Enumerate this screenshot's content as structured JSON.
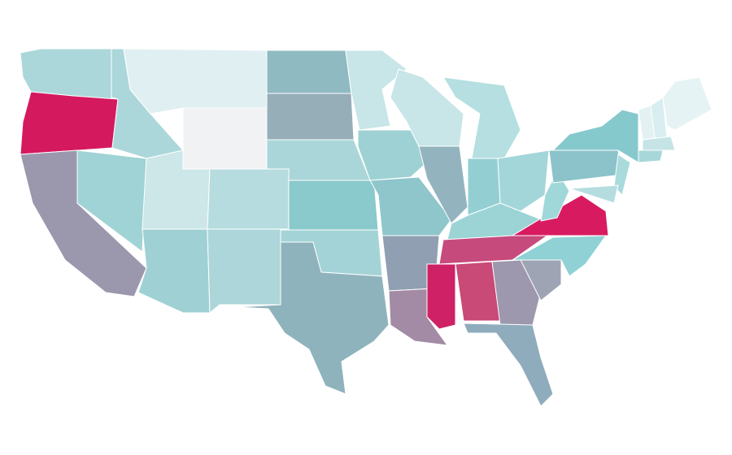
{
  "map": {
    "regions": [
      {
        "color": "#abd7da"
      },
      {
        "color": "#d5195f"
      },
      {
        "color": "#9b98ae"
      },
      {
        "color": "#a0d3d6"
      },
      {
        "color": "#acd7da"
      },
      {
        "color": "#e0eff2"
      },
      {
        "color": "#f1f2f4"
      },
      {
        "color": "#cde6e8"
      },
      {
        "color": "#9fd1d4"
      },
      {
        "color": "#b6dcdf"
      },
      {
        "color": "#acd6d9"
      },
      {
        "color": "#8fbac2"
      },
      {
        "color": "#96aeb8"
      },
      {
        "color": "#abd6d9"
      },
      {
        "color": "#8ac9cc"
      },
      {
        "color": "#a3d3d6"
      },
      {
        "color": "#8fb3bd"
      },
      {
        "color": "#c8e5e7"
      },
      {
        "color": "#9ed1d4"
      },
      {
        "color": "#8fc6cc"
      },
      {
        "color": "#909fb1"
      },
      {
        "color": "#a38ba5"
      },
      {
        "color": "#c8e5e7"
      },
      {
        "color": "#93b4be"
      },
      {
        "color": "#b5dfe1"
      },
      {
        "color": "#93cfd2"
      },
      {
        "color": "#a3d6d8"
      },
      {
        "color": "#9cd4d6"
      },
      {
        "color": "#c74a7d"
      },
      {
        "color": "#cf2166"
      },
      {
        "color": "#c94977"
      },
      {
        "color": "#9d98ad"
      },
      {
        "color": "#8facbd"
      },
      {
        "color": "#9fa4b5"
      },
      {
        "color": "#8fd1d4"
      },
      {
        "color": "#d81b60"
      },
      {
        "color": "#a0d8da"
      },
      {
        "color": "#8cc3ca"
      },
      {
        "color": "#86c9cd"
      },
      {
        "color": "#a9dadc"
      },
      {
        "color": "#b5dde0"
      },
      {
        "color": "#e3f1f3"
      },
      {
        "color": "#d8eef0"
      },
      {
        "color": "#e6f3f4"
      },
      {
        "color": "#c6e4e6"
      },
      {
        "color": "#a8d7da"
      }
    ]
  }
}
